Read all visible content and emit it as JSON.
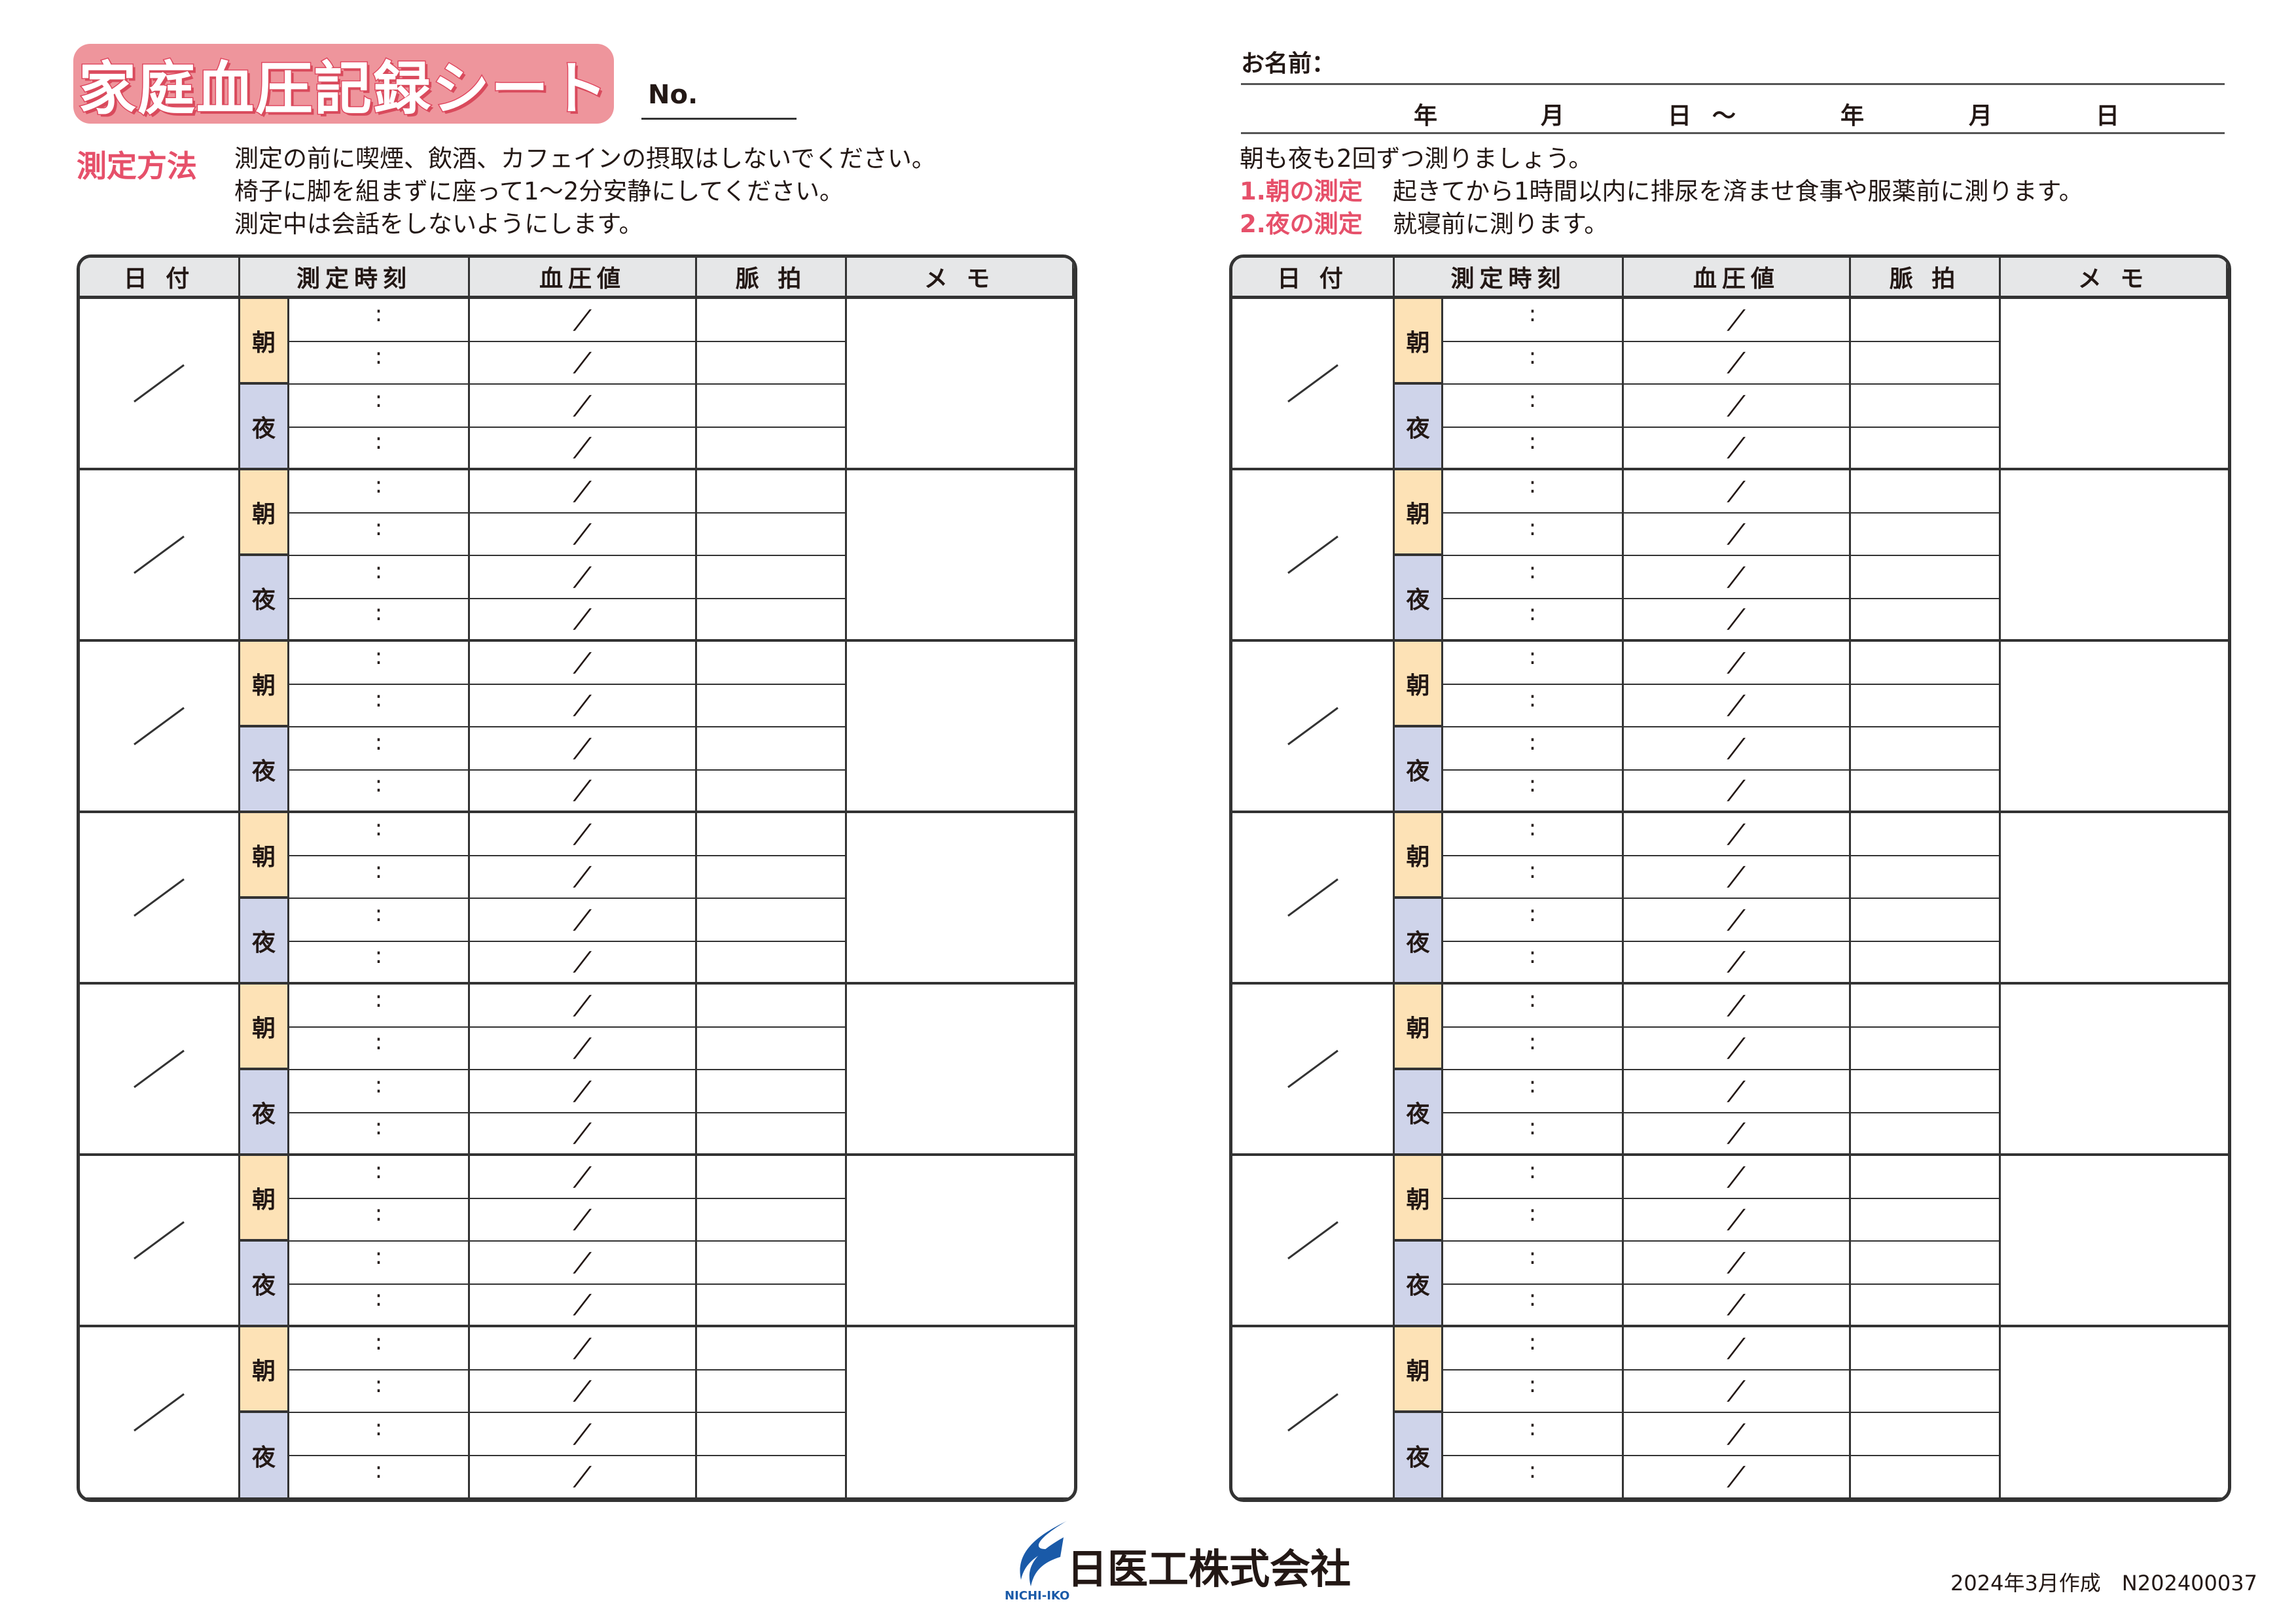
{
  "title": "家庭血圧記録シート",
  "no_label": "No.",
  "method": {
    "label": "測定方法",
    "lines": [
      "測定の前に喫煙、飲酒、カフェインの摂取はしないでください。",
      "椅子に脚を組まずに座って1～2分安静にしてください。",
      "測定中は会話をしないようにします。"
    ]
  },
  "name_label": "お名前：",
  "period": {
    "year1": "年",
    "month1": "月",
    "day1": "日",
    "tilde": "～",
    "year2": "年",
    "month2": "月",
    "day2": "日"
  },
  "instructions": {
    "intro": "朝も夜も2回ずつ測りましょう。",
    "items": [
      {
        "label": "1.朝の測定",
        "text": "起きてから1時間以内に排尿を済ませ食事や服薬前に測ります。"
      },
      {
        "label": "2.夜の測定",
        "text": "就寝前に測ります。"
      }
    ]
  },
  "table": {
    "headers": [
      "日 付",
      "測定時刻",
      "血圧値",
      "脈 拍",
      "メ モ"
    ],
    "morning": "朝",
    "evening": "夜",
    "time_sep": ":",
    "bp_sep": "/",
    "days_per_table": 7
  },
  "colors": {
    "accent": "#e6506a",
    "title_bg": "#ee959c",
    "morning": "#fde2b6",
    "evening": "#cfd4ea",
    "header_bg": "#e6e7e8",
    "logo_blue": "#1a5aa8"
  },
  "footer": {
    "company": "日医工株式会社",
    "logo_text": "NICHI-IKO",
    "code": "2024年3月作成　N202400037"
  }
}
